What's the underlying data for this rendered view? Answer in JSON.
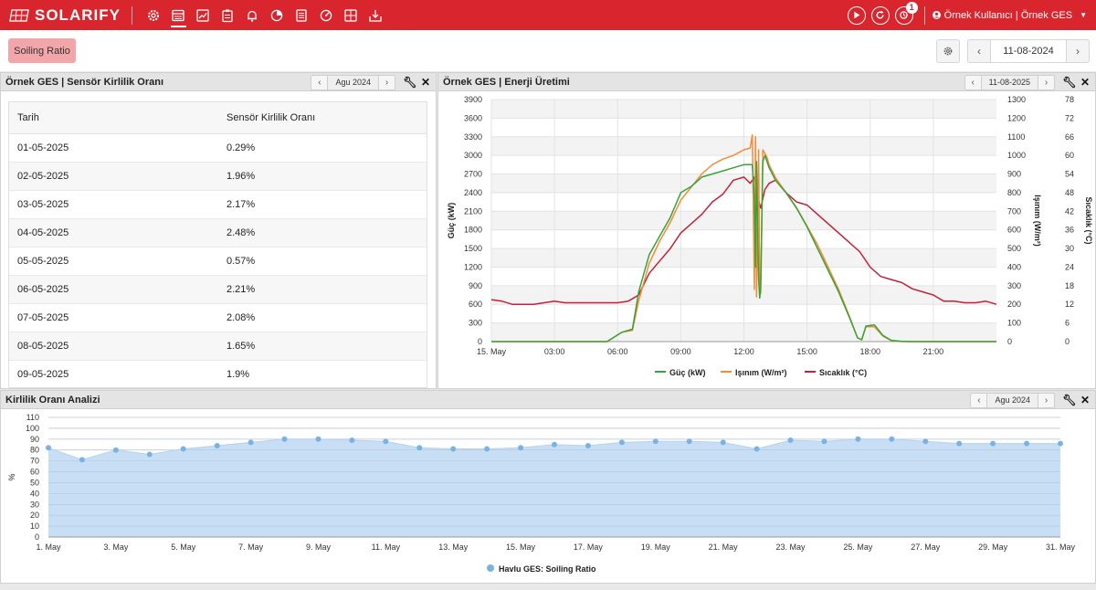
{
  "app": {
    "name": "SOLARIFY"
  },
  "nav": {
    "icons": [
      "settings-icon",
      "dashboard-icon",
      "trend-chart-icon",
      "clipboard-icon",
      "bell-icon",
      "pie-chart-icon",
      "checklist-icon",
      "gauge-icon",
      "grid-icon",
      "inbox-download-icon"
    ],
    "active_index": 1
  },
  "topbar": {
    "notification_count": "1",
    "user_label": "Örnek Kullanıcı | Örnek GES"
  },
  "toolbar": {
    "soiling_button": "Soiling Ratio",
    "date": "11-08-2024"
  },
  "left_panel": {
    "title": "Örnek GES | Sensör Kirlilik Oranı",
    "period": "Agu 2024",
    "columns": [
      "Tarih",
      "Sensör Kirlilik Oranı"
    ],
    "rows": [
      [
        "01-05-2025",
        "0.29%"
      ],
      [
        "02-05-2025",
        "1.96%"
      ],
      [
        "03-05-2025",
        "2.17%"
      ],
      [
        "04-05-2025",
        "2.48%"
      ],
      [
        "05-05-2025",
        "0.57%"
      ],
      [
        "06-05-2025",
        "2.21%"
      ],
      [
        "07-05-2025",
        "2.08%"
      ],
      [
        "08-05-2025",
        "1.65%"
      ],
      [
        "09-05-2025",
        "1.9%"
      ]
    ]
  },
  "right_panel": {
    "title": "Örnek GES | Enerji Üretimi",
    "period": "11-08-2025"
  },
  "bottom_panel": {
    "title": "Kirlilik Oranı Analizi",
    "period": "Agu 2024"
  },
  "chart_data": [
    {
      "type": "line",
      "x_tick_labels": [
        "15. May",
        "03:00",
        "06:00",
        "09:00",
        "12:00",
        "15:00",
        "18:00",
        "21:00"
      ],
      "y_axes": [
        {
          "label": "Güç (kW)",
          "min": 0,
          "max": 3900,
          "ticks": [
            0,
            300,
            600,
            900,
            1200,
            1500,
            1800,
            2100,
            2400,
            2700,
            3000,
            3300,
            3600,
            3900
          ]
        },
        {
          "label": "Işınım (W/m²)",
          "min": 0,
          "max": 1300,
          "ticks": [
            0,
            100,
            200,
            300,
            400,
            500,
            600,
            700,
            800,
            900,
            1000,
            1100,
            1200,
            1300
          ]
        },
        {
          "label": "Sıcaklık (°C)",
          "min": 0,
          "max": 78,
          "ticks": [
            0,
            6,
            12,
            18,
            24,
            30,
            36,
            42,
            48,
            54,
            60,
            66,
            72,
            78
          ]
        }
      ],
      "series": [
        {
          "name": "Güç (kW)",
          "color": "#3aa23a",
          "axis": 0,
          "x": [
            0,
            5.5,
            6.2,
            6.7,
            7.0,
            7.5,
            8.0,
            8.5,
            9.0,
            9.5,
            10.0,
            10.5,
            11.0,
            11.5,
            12.0,
            12.4,
            12.5,
            12.55,
            12.6,
            12.7,
            12.75,
            12.8,
            12.9,
            13.0,
            13.1,
            13.2,
            13.5,
            14.0,
            14.5,
            15.0,
            15.5,
            16.0,
            16.5,
            17.0,
            17.4,
            17.6,
            17.8,
            18.2,
            18.6,
            19.0,
            19.5,
            20.0,
            24.0
          ],
          "y": [
            0,
            0,
            150,
            200,
            800,
            1400,
            1700,
            2000,
            2400,
            2500,
            2650,
            2700,
            2750,
            2800,
            2850,
            2850,
            2300,
            1200,
            2900,
            1000,
            700,
            900,
            2900,
            3000,
            2900,
            2800,
            2600,
            2400,
            2150,
            1850,
            1500,
            1150,
            800,
            400,
            60,
            30,
            250,
            270,
            100,
            20,
            5,
            0,
            0
          ]
        },
        {
          "name": "Işınım (W/m²)",
          "color": "#f28c38",
          "axis": 1,
          "x": [
            0,
            5.5,
            6.2,
            6.7,
            7.0,
            7.5,
            8.0,
            8.5,
            9.0,
            9.5,
            10.0,
            10.5,
            11.0,
            11.5,
            12.0,
            12.3,
            12.4,
            12.5,
            12.55,
            12.6,
            12.7,
            12.75,
            12.8,
            12.9,
            13.0,
            13.1,
            13.2,
            13.5,
            14.0,
            14.5,
            15.0,
            15.5,
            16.0,
            16.5,
            17.0,
            17.4,
            17.6,
            17.8,
            18.2,
            18.6,
            19.0,
            19.5,
            20.0,
            24.0
          ],
          "y": [
            0,
            0,
            50,
            60,
            220,
            420,
            540,
            640,
            760,
            830,
            900,
            950,
            980,
            1000,
            1030,
            1040,
            1110,
            280,
            1100,
            240,
            1030,
            250,
            260,
            1030,
            1010,
            990,
            950,
            880,
            800,
            720,
            620,
            520,
            400,
            280,
            140,
            20,
            10,
            80,
            80,
            30,
            5,
            0,
            0,
            0
          ]
        },
        {
          "name": "Sıcaklık (°C)",
          "color": "#c0223b",
          "axis": 2,
          "x": [
            0,
            0.5,
            1.0,
            1.5,
            2.0,
            2.5,
            3.0,
            3.5,
            4.0,
            4.5,
            5.0,
            5.5,
            6.0,
            6.5,
            7.0,
            7.5,
            8.0,
            8.5,
            9.0,
            9.5,
            10.0,
            10.5,
            11.0,
            11.5,
            12.0,
            12.3,
            12.5,
            12.6,
            12.8,
            13.0,
            13.2,
            13.5,
            14.0,
            14.5,
            15.0,
            15.5,
            16.0,
            16.5,
            17.0,
            17.5,
            18.0,
            18.5,
            19.0,
            19.5,
            20.0,
            20.5,
            21.0,
            21.5,
            22.0,
            22.5,
            23.0,
            23.5,
            24.0
          ],
          "y": [
            13.5,
            13,
            12,
            12,
            12,
            12.5,
            13,
            12.5,
            12.5,
            12.5,
            12.5,
            12.5,
            12.5,
            13,
            15,
            22,
            26,
            30,
            35,
            38,
            41,
            45,
            47.5,
            52,
            53,
            51,
            53,
            48,
            43,
            49,
            51,
            52,
            48,
            45,
            44,
            41,
            38,
            35,
            32,
            29,
            24,
            21,
            20,
            19,
            17,
            16,
            15,
            13,
            13,
            12.5,
            12.5,
            13,
            12
          ]
        }
      ]
    },
    {
      "type": "area",
      "series_name": "Havlu GES: Soiling Ratio",
      "color": "#7ab2e3",
      "ylabel": "%",
      "ylim": [
        0,
        110
      ],
      "y_ticks": [
        0,
        10,
        20,
        30,
        40,
        50,
        60,
        70,
        80,
        90,
        100,
        110
      ],
      "x_tick_labels": [
        "1. May",
        "3. May",
        "5. May",
        "7. May",
        "9. May",
        "11. May",
        "13. May",
        "15. May",
        "17. May",
        "19. May",
        "21. May",
        "23. May",
        "25. May",
        "27. May",
        "29. May",
        "31. May"
      ],
      "days": [
        1,
        2,
        3,
        4,
        5,
        6,
        7,
        8,
        9,
        10,
        11,
        12,
        13,
        14,
        15,
        16,
        17,
        18,
        19,
        20,
        21,
        22,
        23,
        24,
        25,
        26,
        27,
        28,
        29,
        30,
        31
      ],
      "values": [
        82,
        71,
        80,
        76,
        81,
        84,
        87,
        90,
        90,
        89,
        88,
        82,
        81,
        81,
        82,
        85,
        84,
        87,
        88,
        88,
        87,
        81,
        89,
        88,
        90,
        90,
        88,
        86,
        86,
        86,
        86
      ]
    }
  ]
}
